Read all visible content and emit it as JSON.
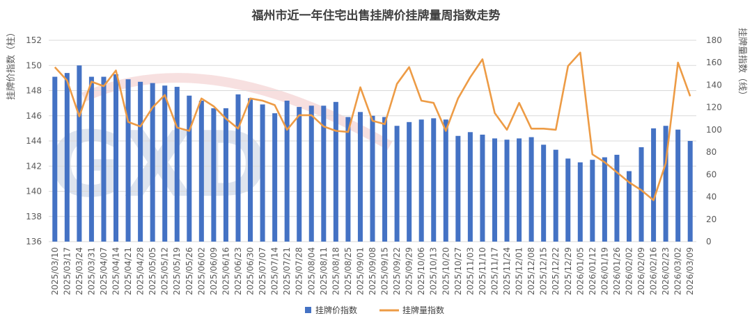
{
  "chart_data": {
    "type": "bar+line",
    "title": "福州市近一年住宅出售挂牌价挂牌量周指数走势",
    "ylabel_left": "挂牌价指数（柱）",
    "ylabel_right": "挂牌量指数（线）",
    "ylim_left": [
      136,
      152
    ],
    "yticks_left": [
      136,
      138,
      140,
      142,
      144,
      146,
      148,
      150,
      152
    ],
    "ylim_right": [
      0,
      180
    ],
    "yticks_right": [
      0,
      20,
      40,
      60,
      80,
      100,
      120,
      140,
      160,
      180
    ],
    "grid": true,
    "legend_position": "bottom",
    "categories": [
      "2025/03/10",
      "2025/03/17",
      "2025/03/24",
      "2025/03/31",
      "2025/04/07",
      "2025/04/14",
      "2025/04/21",
      "2025/04/28",
      "2025/05/05",
      "2025/05/12",
      "2025/05/19",
      "2025/05/26",
      "2025/06/02",
      "2025/06/09",
      "2025/06/16",
      "2025/06/23",
      "2025/06/30",
      "2025/07/07",
      "2025/07/14",
      "2025/07/21",
      "2025/07/28",
      "2025/08/04",
      "2025/08/11",
      "2025/08/18",
      "2025/08/25",
      "2025/09/01",
      "2025/09/08",
      "2025/09/15",
      "2025/09/22",
      "2025/09/29",
      "2025/10/06",
      "2025/10/13",
      "2025/10/20",
      "2025/10/27",
      "2025/11/03",
      "2025/11/10",
      "2025/11/17",
      "2025/11/24",
      "2025/12/01",
      "2025/12/08",
      "2025/12/15",
      "2025/12/22",
      "2025/12/29",
      "2026/01/05",
      "2026/01/12",
      "2026/01/19",
      "2026/01/26",
      "2026/02/02",
      "2026/02/09",
      "2026/02/16",
      "2026/02/23",
      "2026/03/02",
      "2026/03/09"
    ],
    "series": [
      {
        "name": "挂牌价指数",
        "type": "bar",
        "axis": "left",
        "color": "#4472c4",
        "values": [
          149.1,
          149.4,
          150.0,
          149.1,
          149.1,
          149.3,
          148.9,
          148.7,
          148.6,
          148.4,
          148.3,
          147.6,
          147.2,
          146.6,
          146.6,
          147.7,
          147.4,
          146.9,
          146.2,
          147.2,
          146.7,
          146.8,
          146.8,
          147.1,
          145.9,
          146.3,
          146.0,
          145.9,
          145.2,
          145.5,
          145.7,
          145.8,
          145.7,
          144.4,
          144.7,
          144.5,
          144.2,
          144.1,
          144.2,
          144.3,
          143.7,
          143.3,
          142.6,
          142.3,
          142.5,
          142.7,
          142.9,
          141.6,
          143.5,
          145.0,
          145.2,
          144.9,
          144.0
        ]
      },
      {
        "name": "挂牌量指数",
        "type": "line",
        "axis": "right",
        "color": "#ed9b45",
        "values": [
          156,
          144,
          112,
          143,
          139,
          153,
          107,
          103,
          120,
          131,
          102,
          99,
          128,
          121,
          110,
          101,
          128,
          126,
          122,
          100,
          113,
          113,
          103,
          99,
          98,
          138,
          108,
          105,
          141,
          156,
          126,
          124,
          99,
          128,
          147,
          163,
          115,
          100,
          124,
          101,
          101,
          100,
          157,
          169,
          78,
          71,
          62,
          53,
          46,
          37,
          70,
          160,
          130
        ]
      }
    ]
  }
}
